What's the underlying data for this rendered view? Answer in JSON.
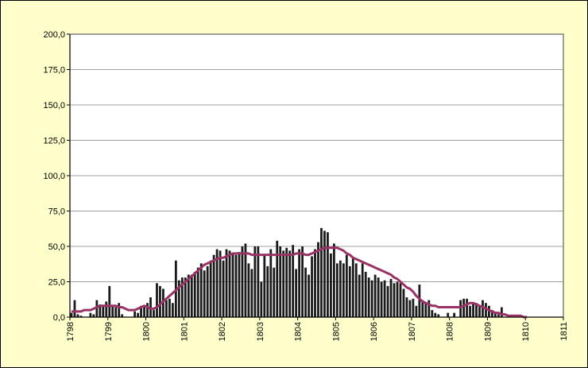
{
  "chart_data": {
    "type": "bar",
    "categories": [
      "1798",
      null,
      null,
      null,
      null,
      null,
      null,
      null,
      null,
      null,
      null,
      null,
      "1799",
      null,
      null,
      null,
      null,
      null,
      null,
      null,
      null,
      null,
      null,
      null,
      "1800",
      null,
      null,
      null,
      null,
      null,
      null,
      null,
      null,
      null,
      null,
      null,
      "1801",
      null,
      null,
      null,
      null,
      null,
      null,
      null,
      null,
      null,
      null,
      null,
      "1802",
      null,
      null,
      null,
      null,
      null,
      null,
      null,
      null,
      null,
      null,
      null,
      "1803",
      null,
      null,
      null,
      null,
      null,
      null,
      null,
      null,
      null,
      null,
      null,
      "1804",
      null,
      null,
      null,
      null,
      null,
      null,
      null,
      null,
      null,
      null,
      null,
      "1805",
      null,
      null,
      null,
      null,
      null,
      null,
      null,
      null,
      null,
      null,
      null,
      "1806",
      null,
      null,
      null,
      null,
      null,
      null,
      null,
      null,
      null,
      null,
      null,
      "1807",
      null,
      null,
      null,
      null,
      null,
      null,
      null,
      null,
      null,
      null,
      null,
      "1808",
      null,
      null,
      null,
      null,
      null,
      null,
      null,
      null,
      null,
      null,
      null,
      "1809",
      null,
      null,
      null,
      null,
      null,
      null,
      null,
      null,
      null,
      null,
      null,
      "1810",
      null,
      null,
      null,
      null,
      null,
      null,
      null,
      null,
      null,
      null,
      null,
      "1811"
    ],
    "series": [
      {
        "type": "bar",
        "color": "#1a1a1a",
        "values": [
          3,
          12,
          2,
          1,
          0,
          0,
          3,
          2,
          12,
          9,
          8,
          11,
          22,
          8,
          7,
          10,
          2,
          0,
          0,
          0,
          4,
          3,
          8,
          7,
          10,
          14,
          5,
          24,
          22,
          20,
          12,
          13,
          10,
          40,
          26,
          28,
          28,
          30,
          30,
          32,
          35,
          38,
          33,
          36,
          40,
          44,
          48,
          47,
          40,
          48,
          47,
          45,
          44,
          46,
          50,
          52,
          38,
          34,
          50,
          50,
          25,
          44,
          36,
          48,
          35,
          54,
          50,
          47,
          49,
          47,
          51,
          34,
          48,
          50,
          35,
          30,
          43,
          48,
          53,
          63,
          61,
          60,
          45,
          52,
          38,
          40,
          38,
          44,
          36,
          42,
          38,
          30,
          38,
          32,
          28,
          26,
          30,
          28,
          25,
          26,
          22,
          27,
          24,
          25,
          24,
          20,
          14,
          12,
          13,
          8,
          23,
          12,
          10,
          12,
          5,
          3,
          2,
          0,
          0,
          3,
          0,
          3,
          0,
          12,
          13,
          13,
          8,
          10,
          10,
          8,
          12,
          10,
          8,
          5,
          3,
          2,
          7,
          0,
          0,
          0,
          0,
          0,
          0,
          0,
          0,
          0,
          0,
          0,
          0,
          0,
          0,
          0,
          0,
          0,
          0,
          0,
          0
        ]
      },
      {
        "type": "line",
        "color": "#993366",
        "values": [
          4,
          4,
          4,
          4,
          5,
          5,
          5,
          6,
          7,
          8,
          8,
          8,
          8,
          8,
          8,
          7,
          7,
          6,
          5,
          5,
          5,
          6,
          7,
          8,
          7,
          6,
          6,
          7,
          9,
          11,
          13,
          15,
          17,
          19,
          21,
          23,
          25,
          27,
          29,
          31,
          33,
          35,
          37,
          38,
          39,
          40,
          41,
          42,
          42,
          43,
          44,
          45,
          45,
          45,
          45,
          45,
          45,
          44,
          44,
          44,
          44,
          44,
          44,
          44,
          44,
          44,
          44,
          44,
          44,
          44,
          44,
          45,
          45,
          45,
          44,
          44,
          45,
          46,
          47,
          48,
          49,
          49,
          49,
          49,
          49,
          48,
          47,
          45,
          44,
          42,
          41,
          40,
          39,
          38,
          37,
          36,
          35,
          34,
          33,
          32,
          31,
          30,
          28,
          27,
          25,
          23,
          21,
          20,
          18,
          15,
          13,
          11,
          10,
          9,
          8,
          8,
          7,
          7,
          7,
          7,
          7,
          7,
          7,
          7,
          8,
          9,
          10,
          10,
          9,
          8,
          7,
          6,
          5,
          4,
          3,
          3,
          2,
          2,
          1,
          1,
          1,
          1,
          1,
          0,
          0,
          null,
          null,
          null,
          null,
          null,
          null,
          null,
          null,
          null,
          null,
          null,
          null
        ]
      }
    ],
    "ylim": [
      0,
      200
    ],
    "yticks": [
      {
        "value": 0,
        "label": "0,0"
      },
      {
        "value": 25,
        "label": "25,0"
      },
      {
        "value": 50,
        "label": "50,0"
      },
      {
        "value": 75,
        "label": "75,0"
      },
      {
        "value": 100,
        "label": "100,0"
      },
      {
        "value": 125,
        "label": "125,0"
      },
      {
        "value": 150,
        "label": "150,0"
      },
      {
        "value": 175,
        "label": "175,0"
      },
      {
        "value": 200,
        "label": "200,0"
      }
    ],
    "grid": true
  }
}
